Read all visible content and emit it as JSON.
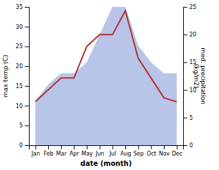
{
  "chart_data": {
    "type": "line",
    "xlabel": "date (month)",
    "ylabel": "max temp (C)",
    "y2label": "med. precipitation\n(kg/m2)",
    "categories": [
      "Jan",
      "Feb",
      "Mar",
      "Apr",
      "May",
      "Jun",
      "Jul",
      "Aug",
      "Sep",
      "Oct",
      "Nov",
      "Dec"
    ],
    "series": [
      {
        "type": "area",
        "axis": "y2",
        "color": "#b8c4e8",
        "values": [
          8,
          11,
          13,
          13,
          15,
          20,
          25,
          25,
          18,
          15,
          13,
          13
        ]
      },
      {
        "type": "line",
        "color": "#b03030",
        "values": [
          11,
          14,
          17,
          17,
          25,
          28,
          28,
          34,
          22,
          17,
          12,
          11
        ]
      }
    ],
    "ylim": [
      0,
      35
    ],
    "yticks": [
      0,
      5,
      10,
      15,
      20,
      25,
      30,
      35
    ],
    "y2lim": [
      0,
      25
    ],
    "y2ticks": [
      0,
      5,
      10,
      15,
      20,
      25
    ],
    "grid": false
  }
}
